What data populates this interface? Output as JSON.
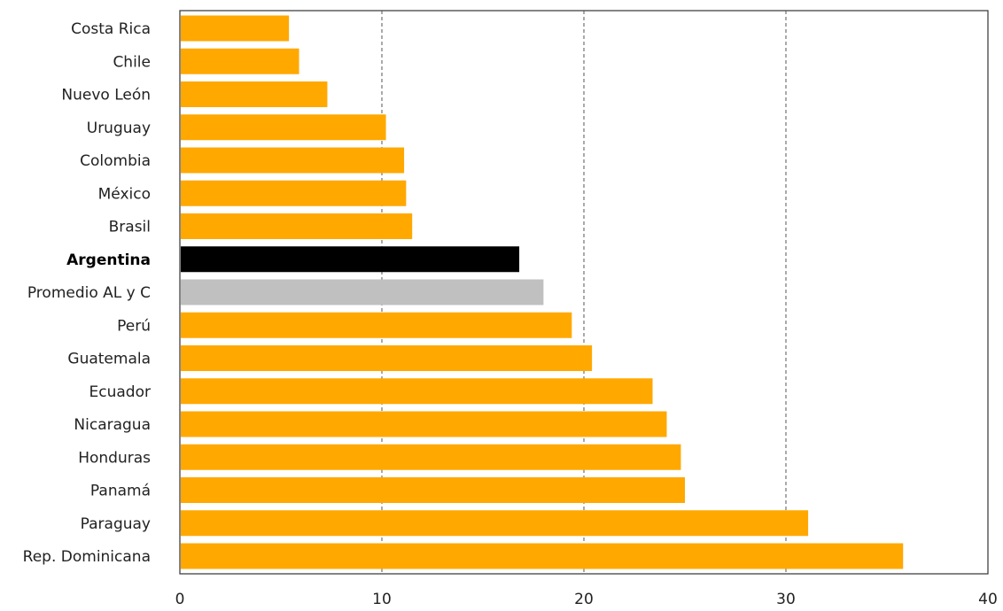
{
  "chart_data": {
    "type": "bar",
    "orientation": "horizontal",
    "title": "",
    "xlabel": "",
    "ylabel": "",
    "xlim": [
      0,
      40
    ],
    "xticks": [
      0,
      10,
      20,
      30,
      40
    ],
    "grid": "vertical dashed",
    "categories": [
      "Costa Rica",
      "Chile",
      "Nuevo León",
      "Uruguay",
      "Colombia",
      "México",
      "Brasil",
      "Argentina",
      "Promedio AL y C",
      "Perú",
      "Guatemala",
      "Ecuador",
      "Nicaragua",
      "Honduras",
      "Panamá",
      "Paraguay",
      "Rep. Dominicana"
    ],
    "values": [
      5.4,
      5.9,
      7.3,
      10.2,
      11.1,
      11.2,
      11.5,
      16.8,
      18.0,
      19.4,
      20.4,
      23.4,
      24.1,
      24.8,
      25.0,
      31.1,
      35.8
    ],
    "highlight": {
      "Argentina": {
        "color": "#000000",
        "bold_label": true
      },
      "Promedio AL y C": {
        "color": "#c0c0c0"
      }
    },
    "default_color": "#ffa800"
  }
}
